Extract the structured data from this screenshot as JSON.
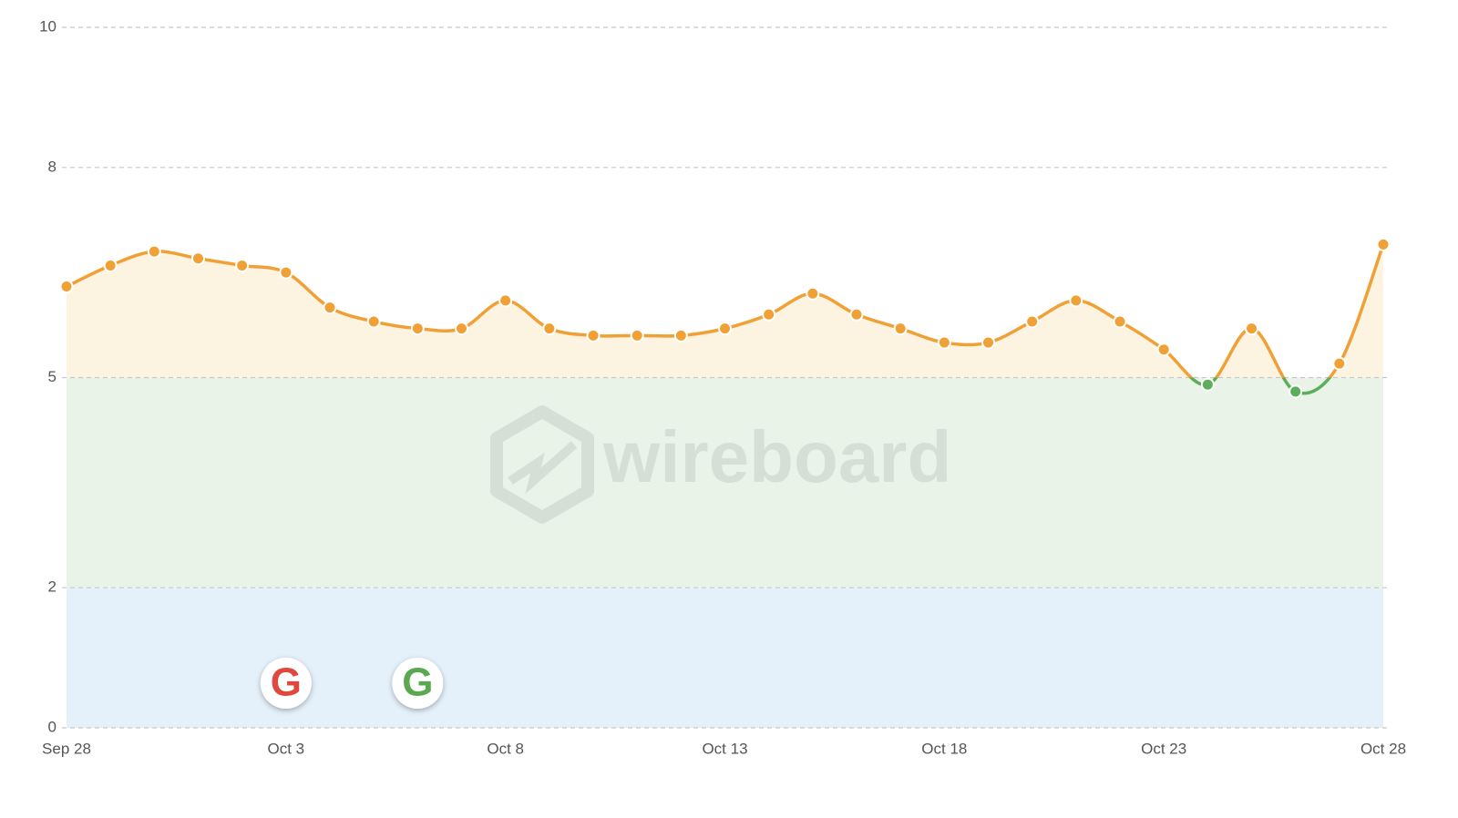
{
  "chart_data": {
    "type": "line",
    "categories": [
      "Sep 28",
      null,
      null,
      null,
      null,
      "Oct 3",
      null,
      null,
      null,
      null,
      "Oct 8",
      null,
      null,
      null,
      null,
      "Oct 13",
      null,
      null,
      null,
      null,
      "Oct 18",
      null,
      null,
      null,
      null,
      "Oct 23",
      null,
      null,
      null,
      null,
      "Oct 28"
    ],
    "values": [
      6.3,
      6.6,
      6.8,
      6.7,
      6.6,
      6.5,
      6.0,
      5.8,
      5.7,
      5.7,
      6.1,
      5.7,
      5.6,
      5.6,
      5.6,
      5.7,
      5.9,
      6.2,
      5.9,
      5.7,
      5.5,
      5.5,
      5.8,
      6.1,
      5.8,
      5.4,
      4.9,
      5.7,
      4.8,
      5.2,
      6.9
    ],
    "color": "#f0a035",
    "below_color": "#5cae5c",
    "threshold": 5,
    "area_color": "#fdf3e1",
    "bands": [
      {
        "from": 0,
        "to": 2,
        "color": "#e4f0fa"
      },
      {
        "from": 2,
        "to": 5,
        "color": "#e9f3e8"
      }
    ],
    "ylim": [
      0,
      10
    ],
    "yticks": [
      0,
      2,
      5,
      8,
      10
    ],
    "grid": true,
    "events": [
      {
        "x": 5,
        "label": "G",
        "color": "#e0483e"
      },
      {
        "x": 8,
        "label": "G",
        "color": "#5aa84f"
      }
    ],
    "watermark": "wireboard"
  }
}
